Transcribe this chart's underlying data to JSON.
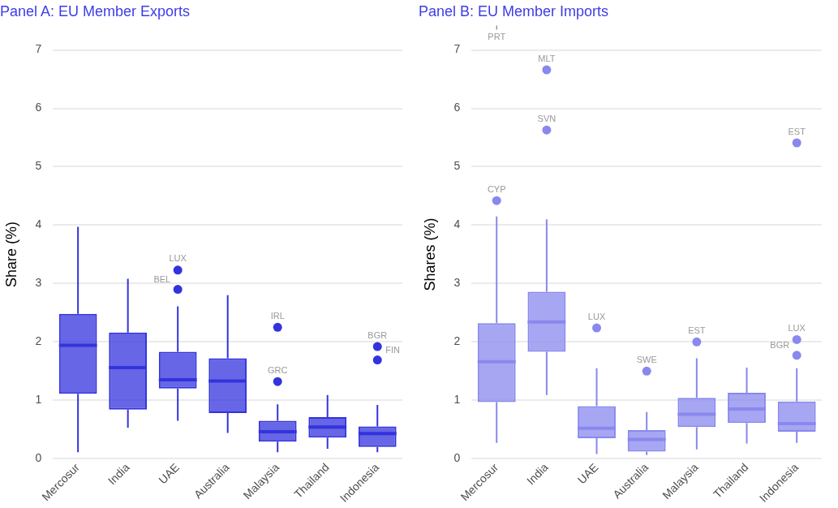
{
  "chart_data": [
    {
      "type": "box",
      "title": "Panel A: EU Member Exports",
      "ylabel": "Share (%)",
      "categories": [
        "Mercosur",
        "India",
        "UAE",
        "Australia",
        "Malaysia",
        "Thailand",
        "Indonesia"
      ],
      "series": [
        {
          "color": "#3333dd",
          "boxes": [
            {
              "low": 0.11,
              "q1": 1.11,
              "median": 1.94,
              "q3": 2.48,
              "high": 3.97
            },
            {
              "low": 0.53,
              "q1": 0.84,
              "median": 1.56,
              "q3": 2.16,
              "high": 3.08
            },
            {
              "low": 0.65,
              "q1": 1.2,
              "median": 1.35,
              "q3": 1.83,
              "high": 2.61,
              "outliers": [
                3.23,
                2.9
              ]
            },
            {
              "low": 0.44,
              "q1": 0.78,
              "median": 1.33,
              "q3": 1.72,
              "high": 2.8
            },
            {
              "low": 0.11,
              "q1": 0.29,
              "median": 0.46,
              "q3": 0.65,
              "high": 0.93,
              "outliers": [
                2.25,
                1.32
              ]
            },
            {
              "low": 0.17,
              "q1": 0.36,
              "median": 0.54,
              "q3": 0.71,
              "high": 1.09
            },
            {
              "low": 0.11,
              "q1": 0.2,
              "median": 0.43,
              "q3": 0.55,
              "high": 0.92,
              "outliers": [
                1.92,
                1.69
              ]
            }
          ]
        }
      ],
      "ylim": [
        0,
        7
      ],
      "yticks": [
        0,
        1,
        2,
        3,
        4,
        5,
        6,
        7
      ],
      "grid": "y",
      "annotations": [
        "LUX",
        "BEL",
        "IRL",
        "GRC",
        "BGR",
        "FIN"
      ]
    },
    {
      "type": "box",
      "title": "Panel B: EU Member Imports",
      "ylabel": "Shares (%)",
      "categories": [
        "Mercosur",
        "India",
        "UAE",
        "Australia",
        "Malaysia",
        "Thailand",
        "Indonesia"
      ],
      "series": [
        {
          "color": "#8888ee",
          "boxes": [
            {
              "low": 0.27,
              "q1": 0.97,
              "median": 1.66,
              "q3": 2.32,
              "high": 4.15,
              "outliers": [
                4.42
              ]
            },
            {
              "low": 1.09,
              "q1": 1.83,
              "median": 2.34,
              "q3": 2.86,
              "high": 4.1,
              "outliers": [
                6.66,
                5.63
              ]
            },
            {
              "low": 0.08,
              "q1": 0.35,
              "median": 0.52,
              "q3": 0.9,
              "high": 1.55,
              "outliers": [
                2.24
              ]
            },
            {
              "low": 0.06,
              "q1": 0.12,
              "median": 0.33,
              "q3": 0.49,
              "high": 0.8,
              "outliers": [
                1.5
              ]
            },
            {
              "low": 0.16,
              "q1": 0.54,
              "median": 0.76,
              "q3": 1.04,
              "high": 1.72,
              "outliers": [
                2.0
              ]
            },
            {
              "low": 0.26,
              "q1": 0.61,
              "median": 0.85,
              "q3": 1.13,
              "high": 1.56
            },
            {
              "low": 0.27,
              "q1": 0.46,
              "median": 0.6,
              "q3": 0.98,
              "high": 1.55,
              "outliers": [
                5.41,
                2.04,
                1.77
              ]
            }
          ]
        }
      ],
      "ylim": [
        0,
        7
      ],
      "yticks": [
        0,
        1,
        2,
        3,
        4,
        5,
        6,
        7
      ],
      "grid": "y",
      "annotations": [
        "CYP",
        "MLT",
        "SVN",
        "LUX",
        "SWE",
        "EST",
        "EST",
        "LUX",
        "BGR",
        "PRT"
      ]
    }
  ]
}
